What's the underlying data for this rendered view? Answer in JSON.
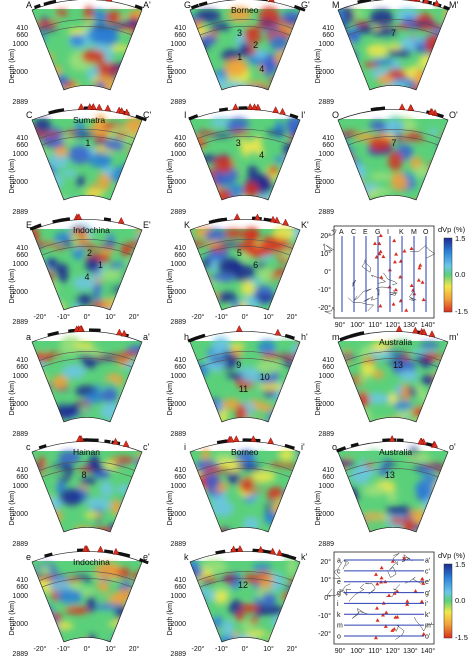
{
  "depth_axis_label": "Depth (km)",
  "depth_ticks": [
    "410",
    "660",
    "1000",
    "2000",
    "2889"
  ],
  "lon_ticks": [
    "-20°",
    "-10°",
    "0°",
    "10°",
    "20°"
  ],
  "colorbar": {
    "title": "dVp (%)",
    "max": "1.5",
    "mid": "0.0",
    "min": "-1.5",
    "colors": [
      "#1d2a8f",
      "#2a7fd8",
      "#6cc6e8",
      "#5bd07a",
      "#f1e84b",
      "#f2a13a",
      "#d7301f"
    ]
  },
  "maps": [
    {
      "id": "map-upper",
      "lat_ticks": [
        "20°",
        "10°",
        "0°",
        "-10°",
        "-20°"
      ],
      "lon_ticks": [
        "90°",
        "100°",
        "110°",
        "120°",
        "130°",
        "140°"
      ],
      "profile_labels": [
        "A",
        "C",
        "E",
        "G",
        "I",
        "K",
        "M",
        "O"
      ],
      "profile_labels_end": [
        "A'",
        "C'",
        "E'",
        "G'",
        "I'",
        "K'",
        "M'",
        "O'"
      ]
    },
    {
      "id": "map-lower",
      "lat_ticks": [
        "20°",
        "10°",
        "0°",
        "-10°",
        "-20°"
      ],
      "lon_ticks": [
        "90°",
        "100°",
        "110°",
        "120°",
        "130°",
        "140°"
      ],
      "profile_labels": [
        "a",
        "c",
        "e",
        "g",
        "i",
        "k",
        "m",
        "o"
      ],
      "profile_labels_end": [
        "a'",
        "c'",
        "e'",
        "g'",
        "i'",
        "k'",
        "m'",
        "o'"
      ]
    }
  ],
  "panels": [
    {
      "id": "A",
      "start": "A",
      "end": "A'",
      "region": "",
      "anomalies": [],
      "show_depth": true
    },
    {
      "id": "G",
      "start": "G",
      "end": "G'",
      "region": "Borneo",
      "anomalies": [
        "3",
        "2",
        "1",
        "4"
      ],
      "show_depth": true
    },
    {
      "id": "M",
      "start": "M",
      "end": "M'",
      "region": "",
      "anomalies": [
        "7"
      ],
      "show_depth": true
    },
    {
      "id": "C",
      "start": "C",
      "end": "C'",
      "region": "Sumatra",
      "anomalies": [
        "1"
      ],
      "show_depth": true
    },
    {
      "id": "I",
      "start": "I",
      "end": "I'",
      "region": "",
      "anomalies": [
        "3",
        "4"
      ],
      "show_depth": true
    },
    {
      "id": "O",
      "start": "O",
      "end": "O'",
      "region": "",
      "anomalies": [
        "7"
      ],
      "show_depth": true
    },
    {
      "id": "E",
      "start": "E",
      "end": "E'",
      "region": "Indochina",
      "anomalies": [
        "2",
        "1",
        "4"
      ],
      "show_depth": true
    },
    {
      "id": "K",
      "start": "K",
      "end": "K'",
      "region": "",
      "anomalies": [
        "5",
        "6"
      ],
      "show_depth": true
    },
    {
      "id": "a",
      "start": "a",
      "end": "a'",
      "region": "",
      "anomalies": [],
      "show_depth": true
    },
    {
      "id": "h",
      "start": "h",
      "end": "h'",
      "region": "",
      "anomalies": [
        "9",
        "10",
        "11"
      ],
      "show_depth": true
    },
    {
      "id": "m",
      "start": "m",
      "end": "m'",
      "region": "Australia",
      "anomalies": [
        "13"
      ],
      "show_depth": true
    },
    {
      "id": "c",
      "start": "c",
      "end": "c'",
      "region": "Hainan",
      "anomalies": [
        "8"
      ],
      "show_depth": true
    },
    {
      "id": "i",
      "start": "i",
      "end": "i'",
      "region": "Borneo",
      "anomalies": [],
      "show_depth": true
    },
    {
      "id": "o",
      "start": "o",
      "end": "o'",
      "region": "Australia",
      "anomalies": [
        "13"
      ],
      "show_depth": true
    },
    {
      "id": "e",
      "start": "e",
      "end": "e'",
      "region": "Indochina",
      "anomalies": [],
      "show_depth": true
    },
    {
      "id": "k",
      "start": "k",
      "end": "k'",
      "region": "",
      "anomalies": [
        "12"
      ],
      "show_depth": true
    }
  ]
}
